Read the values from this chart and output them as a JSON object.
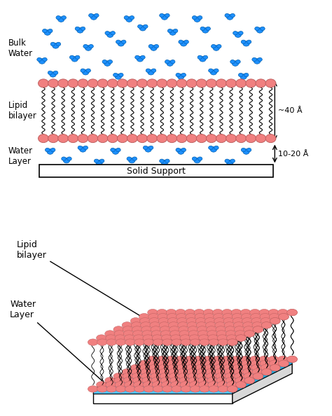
{
  "bg_color": "#ffffff",
  "lipid_head_color": "#f08080",
  "lipid_head_edge": "#c06060",
  "water_molecule_color": "#1e90ff",
  "water_molecule_edge": "#0050cc",
  "solid_support_color": "#ffffff",
  "solid_support_edge": "#000000",
  "water_layer_color_3d": "#4fc3f7",
  "text_color": "#000000",
  "label_bulk_water": "Bulk\nWater",
  "label_lipid_bilayer": "Lipid\nbilayer",
  "label_water_layer": "Water\nLayer",
  "label_solid_support": "Solid Support",
  "label_40A": "~40 Å",
  "label_10_20A": "10-20 Å",
  "label_lipid_bilayer_3d": "Lipid\nbilayer",
  "label_water_layer_3d": "Water\nLayer",
  "fig_width": 4.74,
  "fig_height": 5.94,
  "dpi": 100
}
